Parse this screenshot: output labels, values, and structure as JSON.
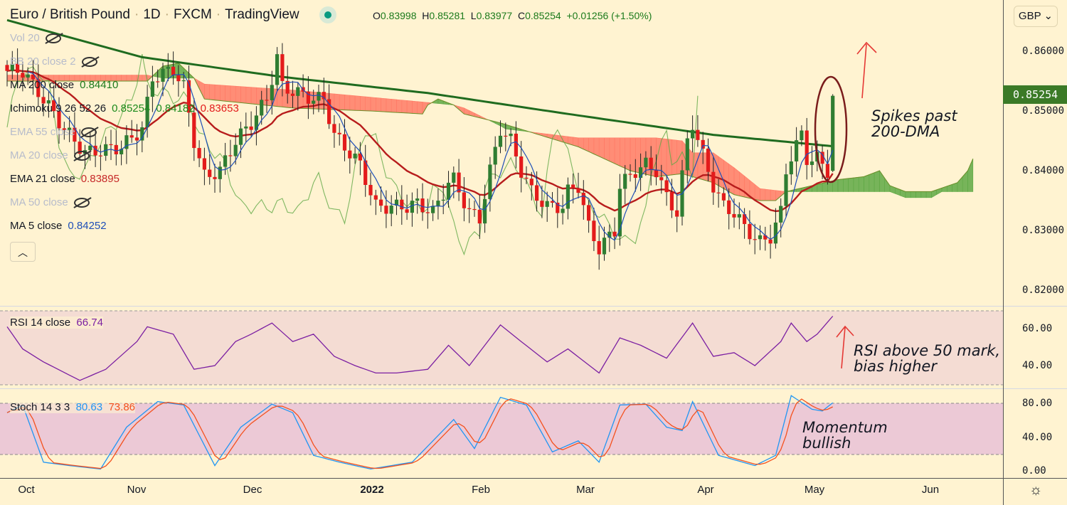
{
  "header": {
    "symbol": "Euro / British Pound",
    "interval": "1D",
    "exchange": "FXCM",
    "source": "TradingView",
    "open_label": "O",
    "open": "0.83998",
    "high_label": "H",
    "high": "0.85281",
    "low_label": "L",
    "low": "0.83977",
    "close_label": "C",
    "close": "0.85254",
    "change": "+0.01256 (+1.50%)"
  },
  "legend": [
    {
      "label": "Vol 20",
      "value": "",
      "hidden": true
    },
    {
      "label": "BB 20 close 2",
      "value": "",
      "hidden": true
    },
    {
      "label": "MA 200 close",
      "value": "0.84410",
      "color": "#1b7a1b"
    },
    {
      "label": "Ichimoku 9 26 52 26",
      "value": "0.85254",
      "value2": "0.84182",
      "value3": "0.83653"
    },
    {
      "label": "EMA 55 close",
      "value": "",
      "hidden": true
    },
    {
      "label": "MA 20 close",
      "value": "",
      "hidden": true
    },
    {
      "label": "EMA 21 close",
      "value": "0.83895",
      "color": "#c62828"
    },
    {
      "label": "MA 50 close",
      "value": "",
      "hidden": true
    },
    {
      "label": "MA 5 close",
      "value": "0.84252",
      "color": "#1e4fb8"
    }
  ],
  "currency": "GBP",
  "last_price": "0.85254",
  "price_axis": [
    "0.86000",
    "0.85000",
    "0.84000",
    "0.83000",
    "0.82000"
  ],
  "rsi": {
    "label": "RSI 14 close",
    "value": "66.74",
    "axis": [
      "60.00",
      "40.00"
    ]
  },
  "stoch": {
    "label": "Stoch 14 3 3",
    "k": "80.63",
    "d": "73.86",
    "axis": [
      "80.00",
      "40.00",
      "0.00"
    ]
  },
  "time_axis": [
    "Oct",
    "Nov",
    "Dec",
    "2022",
    "Feb",
    "Mar",
    "Apr",
    "May",
    "Jun"
  ],
  "annotations": {
    "spike": "Spikes past\n200-DMA",
    "rsi": "RSI above 50 mark,\nbias higher",
    "momentum": "Momentum\nbullish"
  },
  "colors": {
    "up": "#2f7d32",
    "down": "#e31b1b",
    "ma200": "#1f6b1f",
    "ema21": "#b71c1c",
    "ma5": "#1e4fb8",
    "rsi": "#7b1fa2",
    "stochK": "#2196f3",
    "stochD": "#f4511e",
    "cloudUp": "#5fa845",
    "cloudDown": "#ff7a66",
    "bg": "#fff3d1"
  },
  "chart_data": {
    "type": "candlestick",
    "title": "Euro / British Pound · 1D · FXCM",
    "ylim": [
      0.8185,
      0.8665
    ],
    "x_ticks": [
      "Oct",
      "Nov",
      "Dec",
      "2022",
      "Feb",
      "Mar",
      "Apr",
      "May",
      "Jun"
    ],
    "close_anchors": [
      [
        0,
        0.8567
      ],
      [
        3,
        0.8567
      ],
      [
        7,
        0.852
      ],
      [
        11,
        0.847
      ],
      [
        15,
        0.843
      ],
      [
        19,
        0.8435
      ],
      [
        22,
        0.844
      ],
      [
        26,
        0.847
      ],
      [
        28,
        0.8555
      ],
      [
        32,
        0.857
      ],
      [
        34,
        0.854
      ],
      [
        36,
        0.845
      ],
      [
        38,
        0.839
      ],
      [
        41,
        0.84
      ],
      [
        44,
        0.845
      ],
      [
        47,
        0.848
      ],
      [
        50,
        0.852
      ],
      [
        52,
        0.859
      ],
      [
        53,
        0.854
      ],
      [
        56,
        0.853
      ],
      [
        59,
        0.852
      ],
      [
        61,
        0.852
      ],
      [
        63,
        0.846
      ],
      [
        66,
        0.843
      ],
      [
        68,
        0.841
      ],
      [
        71,
        0.834
      ],
      [
        74,
        0.834
      ],
      [
        77,
        0.834
      ],
      [
        79,
        0.8345
      ],
      [
        82,
        0.833
      ],
      [
        85,
        0.838
      ],
      [
        86,
        0.8385
      ],
      [
        89,
        0.833
      ],
      [
        91,
        0.832
      ],
      [
        93,
        0.84
      ],
      [
        95,
        0.847
      ],
      [
        97,
        0.845
      ],
      [
        99,
        0.84
      ],
      [
        101,
        0.8365
      ],
      [
        104,
        0.834
      ],
      [
        107,
        0.834
      ],
      [
        108,
        0.8365
      ],
      [
        110,
        0.8375
      ],
      [
        112,
        0.8305
      ],
      [
        114,
        0.827
      ],
      [
        117,
        0.83
      ],
      [
        118,
        0.8375
      ],
      [
        121,
        0.84
      ],
      [
        123,
        0.841
      ],
      [
        125,
        0.84
      ],
      [
        127,
        0.8355
      ],
      [
        129,
        0.833
      ],
      [
        131,
        0.845
      ],
      [
        132,
        0.848
      ],
      [
        134,
        0.8425
      ],
      [
        136,
        0.8375
      ],
      [
        138,
        0.834
      ],
      [
        140,
        0.833
      ],
      [
        142,
        0.8305
      ],
      [
        145,
        0.828
      ],
      [
        147,
        0.829
      ],
      [
        149,
        0.833
      ],
      [
        150,
        0.84
      ],
      [
        151,
        0.8425
      ],
      [
        153,
        0.846
      ],
      [
        154,
        0.842
      ],
      [
        156,
        0.842
      ],
      [
        158,
        0.84
      ],
      [
        159,
        0.85254
      ]
    ],
    "ma200_anchors": [
      [
        0,
        0.8652
      ],
      [
        26,
        0.859
      ],
      [
        53,
        0.8557
      ],
      [
        81,
        0.853
      ],
      [
        108,
        0.8495
      ],
      [
        136,
        0.846
      ],
      [
        159,
        0.8441
      ]
    ],
    "ichimoku_spanA": [
      [
        0,
        0.855
      ],
      [
        27,
        0.855
      ],
      [
        30,
        0.8575
      ],
      [
        33,
        0.858
      ],
      [
        36,
        0.8555
      ],
      [
        38,
        0.852
      ],
      [
        55,
        0.8505
      ],
      [
        70,
        0.85
      ],
      [
        80,
        0.8495
      ],
      [
        81,
        0.851
      ],
      [
        83,
        0.852
      ],
      [
        86,
        0.851
      ],
      [
        88,
        0.8495
      ],
      [
        95,
        0.848
      ],
      [
        110,
        0.844
      ],
      [
        120,
        0.84
      ],
      [
        125,
        0.839
      ],
      [
        130,
        0.8395
      ],
      [
        136,
        0.838
      ],
      [
        140,
        0.836
      ],
      [
        145,
        0.835
      ],
      [
        148,
        0.835
      ],
      [
        150,
        0.8365
      ],
      [
        155,
        0.8375
      ],
      [
        160,
        0.8385
      ],
      [
        165,
        0.839
      ],
      [
        168,
        0.84
      ],
      [
        170,
        0.8375
      ],
      [
        173,
        0.8365
      ],
      [
        178,
        0.8365
      ],
      [
        183,
        0.838
      ],
      [
        185,
        0.84
      ],
      [
        186,
        0.842
      ]
    ],
    "ichimoku_spanB": [
      [
        0,
        0.856
      ],
      [
        27,
        0.856
      ],
      [
        30,
        0.8555
      ],
      [
        36,
        0.8555
      ],
      [
        38,
        0.8545
      ],
      [
        55,
        0.8535
      ],
      [
        80,
        0.8515
      ],
      [
        86,
        0.851
      ],
      [
        88,
        0.8505
      ],
      [
        95,
        0.8475
      ],
      [
        96,
        0.847
      ],
      [
        110,
        0.8455
      ],
      [
        125,
        0.8455
      ],
      [
        130,
        0.845
      ],
      [
        132,
        0.843
      ],
      [
        136,
        0.843
      ],
      [
        140,
        0.8405
      ],
      [
        145,
        0.837
      ],
      [
        150,
        0.8365
      ],
      [
        160,
        0.8365
      ],
      [
        170,
        0.8365
      ],
      [
        173,
        0.8355
      ],
      [
        178,
        0.8355
      ],
      [
        180,
        0.8365
      ],
      [
        186,
        0.8365
      ]
    ],
    "rsi_anchors": [
      [
        0,
        61
      ],
      [
        3,
        49
      ],
      [
        7,
        42
      ],
      [
        14,
        32
      ],
      [
        19,
        38
      ],
      [
        25,
        53
      ],
      [
        27,
        61
      ],
      [
        32,
        57
      ],
      [
        36,
        38
      ],
      [
        40,
        40
      ],
      [
        44,
        53
      ],
      [
        47,
        57
      ],
      [
        51,
        63
      ],
      [
        55,
        53
      ],
      [
        59,
        57
      ],
      [
        63,
        45
      ],
      [
        67,
        40
      ],
      [
        71,
        36
      ],
      [
        75,
        36
      ],
      [
        81,
        38
      ],
      [
        85,
        51
      ],
      [
        89,
        40
      ],
      [
        95,
        62
      ],
      [
        99,
        53
      ],
      [
        104,
        42
      ],
      [
        108,
        49
      ],
      [
        114,
        36
      ],
      [
        118,
        55
      ],
      [
        122,
        51
      ],
      [
        127,
        44
      ],
      [
        132,
        63
      ],
      [
        136,
        45
      ],
      [
        140,
        47
      ],
      [
        144,
        40
      ],
      [
        149,
        53
      ],
      [
        151,
        63
      ],
      [
        154,
        53
      ],
      [
        156,
        57
      ],
      [
        159,
        66.74
      ]
    ],
    "stoch_k_anchors": [
      [
        0,
        69
      ],
      [
        3,
        78
      ],
      [
        7,
        11
      ],
      [
        12,
        7
      ],
      [
        18,
        3
      ],
      [
        23,
        52
      ],
      [
        29,
        82
      ],
      [
        34,
        78
      ],
      [
        40,
        7
      ],
      [
        45,
        52
      ],
      [
        51,
        79
      ],
      [
        55,
        69
      ],
      [
        59,
        19
      ],
      [
        64,
        11
      ],
      [
        70,
        3
      ],
      [
        78,
        11
      ],
      [
        86,
        61
      ],
      [
        90,
        27
      ],
      [
        95,
        87
      ],
      [
        100,
        78
      ],
      [
        105,
        23
      ],
      [
        110,
        36
      ],
      [
        114,
        11
      ],
      [
        118,
        78
      ],
      [
        123,
        79
      ],
      [
        127,
        52
      ],
      [
        130,
        48
      ],
      [
        132,
        82
      ],
      [
        137,
        19
      ],
      [
        144,
        7
      ],
      [
        148,
        19
      ],
      [
        151,
        89
      ],
      [
        155,
        73
      ],
      [
        157,
        71
      ],
      [
        159,
        80.63
      ]
    ]
  }
}
